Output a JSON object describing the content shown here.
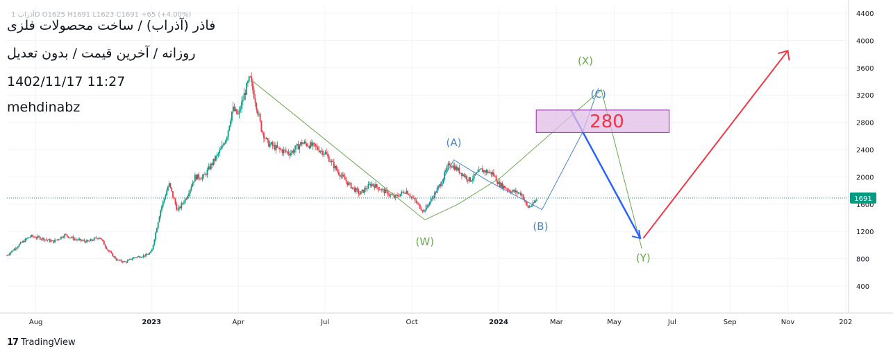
{
  "header": {
    "ohlc_line": "آذراب 1D  O1625  H1691  L1623  C1691  +65 (+4.00%)",
    "symbol_line": "فاذر (آذراب) / ساخت محصولات فلزی",
    "type_line": "روزانه / آخرین قیمت / بدون تعدیل",
    "datetime": "1402/11/17 11:27",
    "author": "mehdinabz"
  },
  "footer": {
    "brand": "TradingView",
    "brand_icon": "tradingview-logo-icon"
  },
  "colors": {
    "up": "#089981",
    "down": "#f23645",
    "grid": "#f0f3fa",
    "green_line": "#6aa84f",
    "blue_line": "#4a86c8",
    "bold_blue": "#2962ff",
    "red_arrow": "#f23645",
    "box_fill": "#e1bee7",
    "box_border": "#9c27b0",
    "last_price": "#089981"
  },
  "chart_data": {
    "type": "candlestick",
    "title": "",
    "xlabel": "",
    "ylabel": "",
    "ylim": [
      0,
      4500
    ],
    "y_ticks": [
      400,
      800,
      1200,
      1600,
      2000,
      2400,
      2800,
      3200,
      3600,
      4000,
      4400
    ],
    "x_ticks": [
      "Aug",
      "2023",
      "Apr",
      "Jul",
      "Oct",
      "2024",
      "Mar",
      "May",
      "Jul",
      "Sep",
      "Nov",
      "202"
    ],
    "x_tick_positions": [
      1.0,
      5.0,
      8.0,
      11.0,
      14.0,
      17.0,
      19.0,
      21.0,
      23.0,
      25.0,
      27.0,
      29.0
    ],
    "last_price": 1691,
    "last_price_label": "1691",
    "price_path": [
      [
        0.0,
        850
      ],
      [
        0.4,
        1000
      ],
      [
        0.8,
        1130
      ],
      [
        1.2,
        1100
      ],
      [
        1.6,
        1050
      ],
      [
        2.0,
        1150
      ],
      [
        2.4,
        1080
      ],
      [
        2.8,
        1050
      ],
      [
        3.2,
        1120
      ],
      [
        3.5,
        920
      ],
      [
        3.8,
        780
      ],
      [
        4.1,
        750
      ],
      [
        4.4,
        820
      ],
      [
        4.8,
        850
      ],
      [
        5.0,
        900
      ],
      [
        5.3,
        1500
      ],
      [
        5.6,
        1900
      ],
      [
        5.9,
        1500
      ],
      [
        6.2,
        1700
      ],
      [
        6.5,
        2000
      ],
      [
        6.8,
        2000
      ],
      [
        7.1,
        2200
      ],
      [
        7.4,
        2400
      ],
      [
        7.6,
        2600
      ],
      [
        7.8,
        3000
      ],
      [
        8.0,
        2900
      ],
      [
        8.2,
        3200
      ],
      [
        8.4,
        3450
      ],
      [
        8.6,
        3100
      ],
      [
        8.8,
        2700
      ],
      [
        9.0,
        2500
      ],
      [
        9.4,
        2400
      ],
      [
        9.8,
        2350
      ],
      [
        10.2,
        2500
      ],
      [
        10.6,
        2450
      ],
      [
        11.0,
        2350
      ],
      [
        11.4,
        2100
      ],
      [
        11.8,
        1900
      ],
      [
        12.2,
        1750
      ],
      [
        12.6,
        1900
      ],
      [
        13.0,
        1800
      ],
      [
        13.4,
        1700
      ],
      [
        13.8,
        1800
      ],
      [
        14.2,
        1600
      ],
      [
        14.4,
        1500
      ],
      [
        14.6,
        1620
      ],
      [
        15.0,
        1900
      ],
      [
        15.3,
        2200
      ],
      [
        15.6,
        2100
      ],
      [
        16.0,
        1950
      ],
      [
        16.4,
        2100
      ],
      [
        16.8,
        2050
      ],
      [
        17.0,
        1900
      ],
      [
        17.4,
        1800
      ],
      [
        17.8,
        1750
      ],
      [
        18.0,
        1550
      ],
      [
        18.2,
        1600
      ],
      [
        18.35,
        1691
      ]
    ],
    "annotations": [
      {
        "label": "(W)",
        "x": 14.45,
        "y": 1000,
        "color": "green"
      },
      {
        "label": "(X)",
        "x": 20.0,
        "y": 3650,
        "color": "green"
      },
      {
        "label": "(Y)",
        "x": 22.0,
        "y": 760,
        "color": "green"
      },
      {
        "label": "(A)",
        "x": 15.45,
        "y": 2450,
        "color": "blue"
      },
      {
        "label": "(B)",
        "x": 18.45,
        "y": 1220,
        "color": "blue"
      },
      {
        "label": "(C)",
        "x": 20.45,
        "y": 3160,
        "color": "blue"
      }
    ],
    "box": {
      "label": "280",
      "x1": 18.3,
      "x2": 22.9,
      "y1": 2650,
      "y2": 2980
    },
    "wave_lines": {
      "green": [
        [
          8.45,
          3420
        ],
        [
          14.45,
          1370
        ],
        [
          15.6,
          1600
        ],
        [
          17.1,
          2000
        ],
        [
          20.55,
          3280
        ],
        [
          21.95,
          950
        ]
      ],
      "blue": [
        [
          14.45,
          1480
        ],
        [
          15.45,
          2250
        ],
        [
          16.6,
          1950
        ],
        [
          18.5,
          1520
        ],
        [
          19.9,
          2650
        ],
        [
          20.45,
          3300
        ]
      ],
      "bold_blue": [
        [
          19.5,
          2980
        ],
        [
          21.9,
          1100
        ]
      ],
      "red_arrow": [
        [
          22.0,
          1100
        ],
        [
          27.0,
          3850
        ]
      ]
    }
  }
}
